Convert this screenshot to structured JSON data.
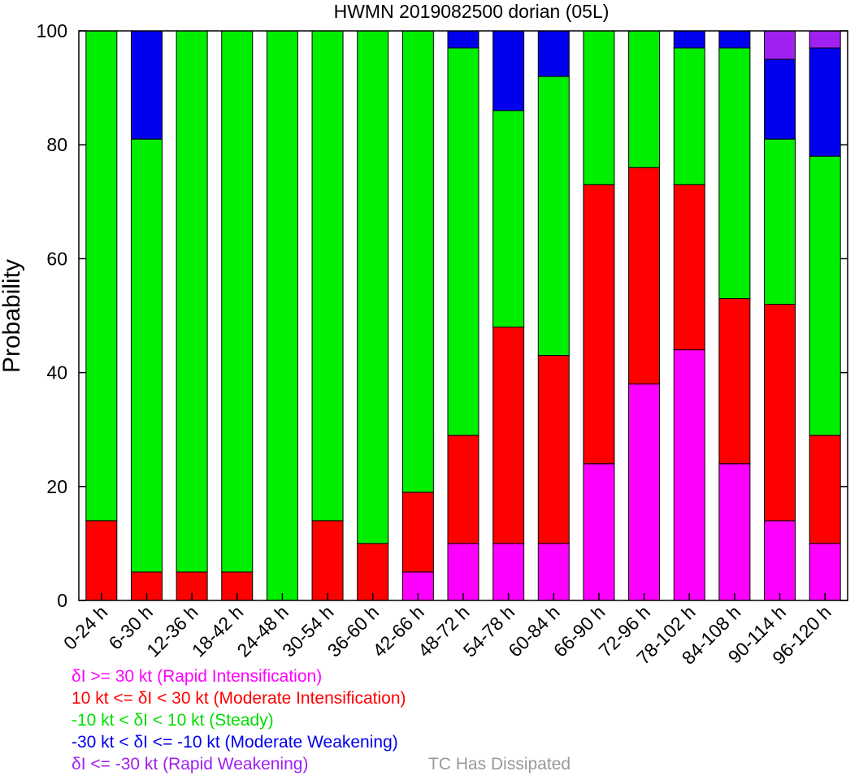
{
  "chart_data": {
    "type": "stacked-bar",
    "title": "HWMN 2019082500 dorian (05L)",
    "ylabel": "Probability",
    "xlabel": "",
    "ylim": [
      0,
      100
    ],
    "yticks": [
      0,
      20,
      40,
      60,
      80,
      100
    ],
    "categories": [
      "0-24 h",
      "6-30 h",
      "12-36 h",
      "18-42 h",
      "24-48 h",
      "30-54 h",
      "36-60 h",
      "42-66 h",
      "48-72 h",
      "54-78 h",
      "60-84 h",
      "66-90 h",
      "72-96 h",
      "78-102 h",
      "84-108 h",
      "90-114 h",
      "96-120 h"
    ],
    "series": [
      {
        "name": "Rapid Intensification",
        "color": "#ff00ff",
        "values": [
          0,
          0,
          0,
          0,
          0,
          0,
          0,
          5,
          10,
          10,
          10,
          24,
          38,
          44,
          24,
          14,
          10
        ]
      },
      {
        "name": "Moderate Intensification",
        "color": "#ff0000",
        "values": [
          14,
          5,
          5,
          5,
          0,
          14,
          10,
          14,
          19,
          38,
          33,
          49,
          38,
          29,
          29,
          38,
          19
        ]
      },
      {
        "name": "Steady",
        "color": "#00ee00",
        "values": [
          86,
          76,
          95,
          95,
          100,
          86,
          90,
          81,
          68,
          38,
          49,
          27,
          24,
          24,
          44,
          29,
          49
        ]
      },
      {
        "name": "Moderate Weakening",
        "color": "#0000ee",
        "values": [
          0,
          19,
          0,
          0,
          0,
          0,
          0,
          0,
          3,
          14,
          8,
          0,
          0,
          3,
          3,
          14,
          19
        ]
      },
      {
        "name": "Rapid Weakening",
        "color": "#a020f0",
        "values": [
          0,
          0,
          0,
          0,
          0,
          0,
          0,
          0,
          0,
          0,
          0,
          0,
          0,
          0,
          0,
          5,
          3
        ]
      }
    ],
    "legend": [
      {
        "text": "δI >= 30 kt (Rapid Intensification)",
        "color": "#ff00ff"
      },
      {
        "text": "10 kt <= δI < 30 kt (Moderate Intensification)",
        "color": "#ff0000"
      },
      {
        "text": "-10 kt < δI < 10 kt (Steady)",
        "color": "#00dd00"
      },
      {
        "text": "-30 kt < δI <= -10 kt (Moderate Weakening)",
        "color": "#0000ee"
      },
      {
        "text": "δI <= -30 kt (Rapid Weakening)",
        "color": "#a020f0"
      },
      {
        "text": "TC Has Dissipated",
        "color": "#999999"
      }
    ]
  }
}
